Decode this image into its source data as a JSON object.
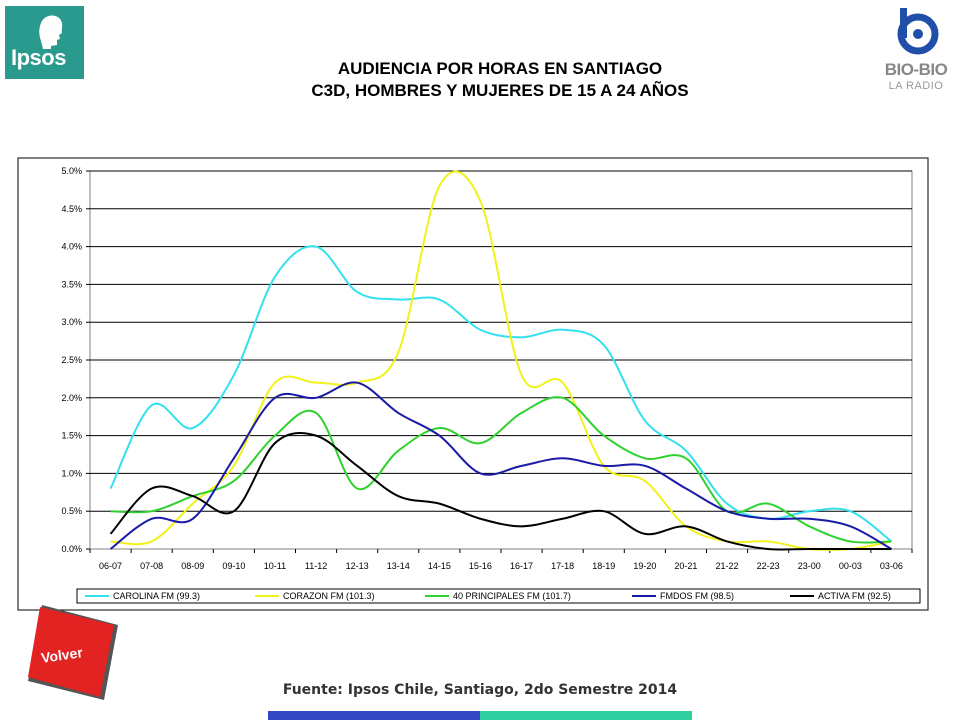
{
  "header": {
    "title_line1": "AUDIENCIA POR HORAS EN SANTIAGO",
    "title_line2": "C3D, HOMBRES Y MUJERES DE 15 A 24 AÑOS"
  },
  "logos": {
    "ipsos": "Ipsos",
    "biobio": "BIO-BIO",
    "biobio_sub": "LA RADIO"
  },
  "footer": {
    "source": "Fuente: Ipsos Chile, Santiago, 2do Semestre 2014",
    "volver_label": "Volver"
  },
  "colors": {
    "ipsos": "#2a9a8e",
    "volver": "#e32222"
  },
  "chart_data": {
    "type": "line",
    "categories": [
      "06-07",
      "07-08",
      "08-09",
      "09-10",
      "10-11",
      "11-12",
      "12-13",
      "13-14",
      "14-15",
      "15-16",
      "16-17",
      "17-18",
      "18-19",
      "19-20",
      "20-21",
      "21-22",
      "22-23",
      "23-00",
      "00-03",
      "03-06"
    ],
    "y_ticks": [
      "0.0%",
      "0.5%",
      "1.0%",
      "1.5%",
      "2.0%",
      "2.5%",
      "3.0%",
      "3.5%",
      "4.0%",
      "4.5%",
      "5.0%"
    ],
    "ylim": [
      0,
      5
    ],
    "grid": true,
    "legend_position": "bottom",
    "series": [
      {
        "name": "CAROLINA FM (99.3)",
        "color": "#33e0ee",
        "values": [
          0.8,
          1.9,
          1.6,
          2.3,
          3.6,
          4.0,
          3.4,
          3.3,
          3.3,
          2.9,
          2.8,
          2.9,
          2.7,
          1.7,
          1.3,
          0.6,
          0.4,
          0.5,
          0.5,
          0.1
        ]
      },
      {
        "name": "CORAZON FM (101.3)",
        "color": "#f2f21a",
        "values": [
          0.1,
          0.1,
          0.6,
          1.1,
          2.2,
          2.2,
          2.2,
          2.6,
          4.8,
          4.6,
          2.3,
          2.2,
          1.1,
          0.9,
          0.3,
          0.1,
          0.1,
          0.0,
          0.0,
          0.1
        ]
      },
      {
        "name": "40 PRINCIPALES FM (101.7)",
        "color": "#2ed12e",
        "values": [
          0.5,
          0.5,
          0.7,
          0.9,
          1.5,
          1.8,
          0.8,
          1.3,
          1.6,
          1.4,
          1.8,
          2.0,
          1.5,
          1.2,
          1.2,
          0.5,
          0.6,
          0.3,
          0.1,
          0.1
        ]
      },
      {
        "name": "FMDOS FM (98.5)",
        "color": "#1a1aa8",
        "values": [
          0.0,
          0.4,
          0.4,
          1.2,
          2.0,
          2.0,
          2.2,
          1.8,
          1.5,
          1.0,
          1.1,
          1.2,
          1.1,
          1.1,
          0.8,
          0.5,
          0.4,
          0.4,
          0.3,
          0.0
        ]
      },
      {
        "name": "ACTIVA FM (92.5)",
        "color": "#000000",
        "values": [
          0.2,
          0.8,
          0.7,
          0.5,
          1.4,
          1.5,
          1.1,
          0.7,
          0.6,
          0.4,
          0.3,
          0.4,
          0.5,
          0.2,
          0.3,
          0.1,
          0.0,
          0.0,
          0.0,
          0.0
        ]
      }
    ]
  }
}
